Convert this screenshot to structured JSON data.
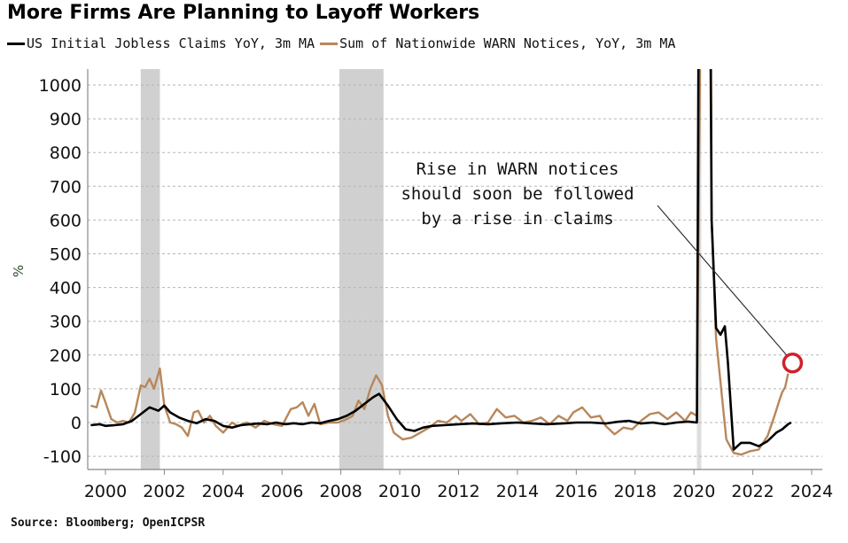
{
  "chart_data": {
    "type": "line",
    "title": "More Firms Are Planning to Layoff Workers",
    "ylabel": "%",
    "xlabel": "",
    "ylim": [
      -100,
      1000
    ],
    "xlim": [
      1999.4,
      2024.4
    ],
    "yticks": [
      1000,
      900,
      800,
      700,
      600,
      500,
      400,
      300,
      200,
      100,
      0,
      -100
    ],
    "xticks": [
      2000,
      2002,
      2004,
      2006,
      2008,
      2010,
      2012,
      2014,
      2016,
      2018,
      2020,
      2022,
      2024
    ],
    "grid": "horizontal-dotted",
    "legend_position": "top",
    "recessions": [
      {
        "start": 2001.2,
        "end": 2001.85
      },
      {
        "start": 2007.95,
        "end": 2009.45
      },
      {
        "start": 2020.1,
        "end": 2020.25
      }
    ],
    "series": [
      {
        "name": "US Initial Jobless Claims YoY, 3m MA",
        "color": "#000000",
        "points": [
          [
            1999.5,
            -8
          ],
          [
            1999.8,
            -5
          ],
          [
            2000.0,
            -10
          ],
          [
            2000.3,
            -8
          ],
          [
            2000.6,
            -5
          ],
          [
            2000.9,
            5
          ],
          [
            2001.2,
            25
          ],
          [
            2001.5,
            45
          ],
          [
            2001.8,
            35
          ],
          [
            2002.0,
            50
          ],
          [
            2002.2,
            30
          ],
          [
            2002.5,
            15
          ],
          [
            2002.8,
            5
          ],
          [
            2003.1,
            -2
          ],
          [
            2003.4,
            10
          ],
          [
            2003.7,
            5
          ],
          [
            2004.0,
            -10
          ],
          [
            2004.3,
            -15
          ],
          [
            2004.6,
            -8
          ],
          [
            2004.9,
            -5
          ],
          [
            2005.2,
            -3
          ],
          [
            2005.5,
            -5
          ],
          [
            2005.8,
            0
          ],
          [
            2006.1,
            -5
          ],
          [
            2006.4,
            -2
          ],
          [
            2006.7,
            -5
          ],
          [
            2007.0,
            0
          ],
          [
            2007.3,
            -2
          ],
          [
            2007.6,
            5
          ],
          [
            2007.9,
            10
          ],
          [
            2008.2,
            20
          ],
          [
            2008.5,
            35
          ],
          [
            2008.8,
            55
          ],
          [
            2009.1,
            75
          ],
          [
            2009.3,
            85
          ],
          [
            2009.6,
            50
          ],
          [
            2009.9,
            10
          ],
          [
            2010.2,
            -20
          ],
          [
            2010.5,
            -25
          ],
          [
            2010.8,
            -15
          ],
          [
            2011.1,
            -10
          ],
          [
            2011.5,
            -8
          ],
          [
            2012.0,
            -5
          ],
          [
            2012.5,
            -3
          ],
          [
            2013.0,
            -5
          ],
          [
            2013.5,
            -2
          ],
          [
            2014.0,
            0
          ],
          [
            2014.5,
            -3
          ],
          [
            2015.0,
            -5
          ],
          [
            2015.5,
            -3
          ],
          [
            2016.0,
            0
          ],
          [
            2016.5,
            0
          ],
          [
            2017.0,
            -3
          ],
          [
            2017.4,
            2
          ],
          [
            2017.8,
            5
          ],
          [
            2018.2,
            -3
          ],
          [
            2018.6,
            0
          ],
          [
            2019.0,
            -5
          ],
          [
            2019.4,
            0
          ],
          [
            2019.8,
            3
          ],
          [
            2020.1,
            0
          ],
          [
            2020.2,
            2000
          ],
          [
            2020.5,
            2000
          ],
          [
            2020.6,
            600
          ],
          [
            2020.75,
            280
          ],
          [
            2020.9,
            260
          ],
          [
            2021.05,
            285
          ],
          [
            2021.15,
            180
          ],
          [
            2021.35,
            -80
          ],
          [
            2021.6,
            -60
          ],
          [
            2021.9,
            -60
          ],
          [
            2022.2,
            -70
          ],
          [
            2022.5,
            -55
          ],
          [
            2022.8,
            -30
          ],
          [
            2023.0,
            -20
          ],
          [
            2023.2,
            -5
          ],
          [
            2023.3,
            0
          ]
        ]
      },
      {
        "name": "Sum of Nationwide WARN Notices, YoY, 3m MA",
        "color": "#B8875A",
        "points": [
          [
            1999.5,
            50
          ],
          [
            1999.7,
            45
          ],
          [
            1999.85,
            95
          ],
          [
            2000.0,
            60
          ],
          [
            2000.2,
            10
          ],
          [
            2000.4,
            0
          ],
          [
            2000.6,
            5
          ],
          [
            2000.8,
            0
          ],
          [
            2001.0,
            30
          ],
          [
            2001.2,
            110
          ],
          [
            2001.35,
            105
          ],
          [
            2001.5,
            130
          ],
          [
            2001.65,
            100
          ],
          [
            2001.85,
            160
          ],
          [
            2002.0,
            50
          ],
          [
            2002.2,
            0
          ],
          [
            2002.4,
            -5
          ],
          [
            2002.6,
            -15
          ],
          [
            2002.8,
            -40
          ],
          [
            2003.0,
            30
          ],
          [
            2003.15,
            35
          ],
          [
            2003.35,
            0
          ],
          [
            2003.55,
            20
          ],
          [
            2003.75,
            -10
          ],
          [
            2004.0,
            -30
          ],
          [
            2004.3,
            0
          ],
          [
            2004.5,
            -10
          ],
          [
            2004.8,
            0
          ],
          [
            2005.1,
            -15
          ],
          [
            2005.4,
            5
          ],
          [
            2005.7,
            -5
          ],
          [
            2006.0,
            -10
          ],
          [
            2006.3,
            40
          ],
          [
            2006.5,
            45
          ],
          [
            2006.7,
            60
          ],
          [
            2006.9,
            20
          ],
          [
            2007.1,
            55
          ],
          [
            2007.3,
            -5
          ],
          [
            2007.6,
            0
          ],
          [
            2007.9,
            0
          ],
          [
            2008.2,
            10
          ],
          [
            2008.4,
            20
          ],
          [
            2008.6,
            65
          ],
          [
            2008.8,
            40
          ],
          [
            2009.0,
            100
          ],
          [
            2009.2,
            140
          ],
          [
            2009.4,
            110
          ],
          [
            2009.6,
            20
          ],
          [
            2009.8,
            -30
          ],
          [
            2010.1,
            -50
          ],
          [
            2010.4,
            -45
          ],
          [
            2010.7,
            -30
          ],
          [
            2011.0,
            -15
          ],
          [
            2011.3,
            5
          ],
          [
            2011.6,
            0
          ],
          [
            2011.9,
            20
          ],
          [
            2012.1,
            5
          ],
          [
            2012.4,
            25
          ],
          [
            2012.7,
            -5
          ],
          [
            2013.0,
            0
          ],
          [
            2013.3,
            40
          ],
          [
            2013.6,
            15
          ],
          [
            2013.9,
            20
          ],
          [
            2014.2,
            0
          ],
          [
            2014.5,
            5
          ],
          [
            2014.8,
            15
          ],
          [
            2015.1,
            -5
          ],
          [
            2015.4,
            20
          ],
          [
            2015.7,
            5
          ],
          [
            2015.9,
            30
          ],
          [
            2016.2,
            45
          ],
          [
            2016.5,
            15
          ],
          [
            2016.8,
            20
          ],
          [
            2017.0,
            -10
          ],
          [
            2017.3,
            -35
          ],
          [
            2017.6,
            -15
          ],
          [
            2017.9,
            -20
          ],
          [
            2018.2,
            5
          ],
          [
            2018.5,
            25
          ],
          [
            2018.8,
            30
          ],
          [
            2019.1,
            10
          ],
          [
            2019.4,
            30
          ],
          [
            2019.7,
            5
          ],
          [
            2019.9,
            30
          ],
          [
            2020.1,
            20
          ],
          [
            2020.3,
            2000
          ],
          [
            2020.55,
            2000
          ],
          [
            2020.6,
            600
          ],
          [
            2020.75,
            250
          ],
          [
            2020.9,
            120
          ],
          [
            2021.1,
            -50
          ],
          [
            2021.35,
            -90
          ],
          [
            2021.6,
            -95
          ],
          [
            2021.9,
            -85
          ],
          [
            2022.2,
            -80
          ],
          [
            2022.5,
            -40
          ],
          [
            2022.7,
            10
          ],
          [
            2022.9,
            65
          ],
          [
            2023.0,
            90
          ],
          [
            2023.1,
            105
          ],
          [
            2023.2,
            145
          ]
        ]
      }
    ],
    "annotation": {
      "lines": [
        "Rise in WARN notices",
        "should soon be followed",
        "by a rise in claims"
      ],
      "arrow_target": [
        2023.2,
        145
      ],
      "highlight_color": "#d0202a"
    }
  },
  "source": "Source: Bloomberg; OpenICPSR"
}
